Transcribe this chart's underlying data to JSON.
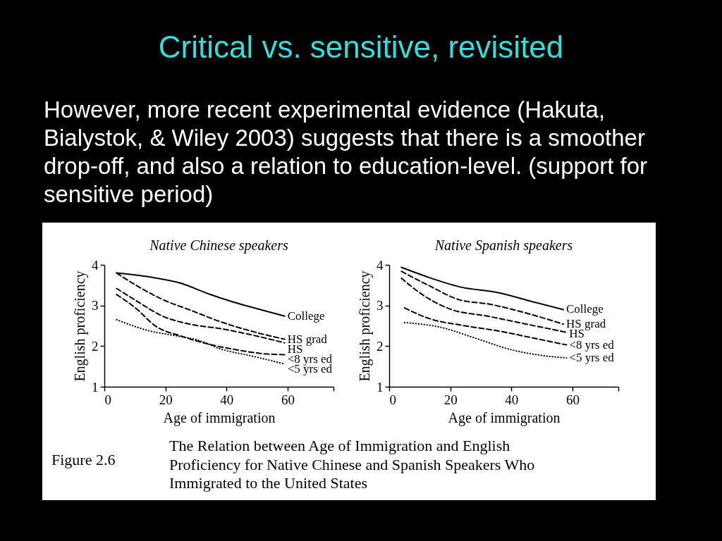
{
  "chart_data": [
    {
      "type": "other",
      "title": "Critical vs. sensitive, revisited",
      "subtitle": "However, more recent experimental evidence (Hakuta, Bialystok, & Wiley 2003) suggests that there is a smoother drop-off, and also a relation to education-level. (support for sensitive period)"
    },
    {
      "type": "line",
      "title": "Native Chinese speakers",
      "xlabel": "Age of immigration",
      "ylabel": "English proficiency",
      "xlim": [
        0,
        75
      ],
      "ylim": [
        1,
        4
      ],
      "xticks": [
        0,
        20,
        40,
        60,
        {
          "value": 75,
          "label": null
        }
      ],
      "yticks": [
        1,
        2,
        3,
        4
      ],
      "series": [
        {
          "name": "College",
          "color": "#000000",
          "line_style": "solid",
          "x": [
            4,
            15,
            25,
            34,
            42,
            50,
            59
          ],
          "values": [
            3.8,
            3.7,
            3.55,
            3.29,
            3.09,
            2.92,
            2.74
          ]
        },
        {
          "name": "HS grad",
          "color": "#000000",
          "line_style": "dashed",
          "x": [
            4,
            11,
            19,
            28,
            38,
            48,
            59
          ],
          "values": [
            3.8,
            3.47,
            3.15,
            2.89,
            2.6,
            2.37,
            2.17
          ]
        },
        {
          "name": "HS",
          "color": "#000000",
          "line_style": "dashed",
          "x": [
            4,
            11,
            19,
            28,
            38,
            48,
            59
          ],
          "values": [
            3.42,
            3.09,
            2.74,
            2.54,
            2.43,
            2.28,
            2.08
          ]
        },
        {
          "name": "<8 yrs ed",
          "color": "#000000",
          "line_style": "dashed",
          "x": [
            4,
            10,
            17,
            25,
            34,
            44,
            51,
            59
          ],
          "values": [
            3.27,
            2.95,
            2.48,
            2.25,
            2.05,
            1.9,
            1.82,
            1.79
          ]
        },
        {
          "name": "<5 yrs ed",
          "color": "#000000",
          "line_style": "dotted",
          "x": [
            4,
            15,
            23,
            31,
            38,
            48,
            59
          ],
          "values": [
            2.65,
            2.37,
            2.26,
            2.14,
            1.93,
            1.76,
            1.56
          ]
        }
      ]
    },
    {
      "type": "line",
      "title": "Native Spanish speakers",
      "xlabel": "Age of immigration",
      "ylabel": "English proficiency",
      "xlim": [
        0,
        75
      ],
      "ylim": [
        1,
        4
      ],
      "xticks": [
        0,
        20,
        40,
        60,
        {
          "value": 75,
          "label": null
        }
      ],
      "yticks": [
        1,
        2,
        3,
        4
      ],
      "series": [
        {
          "name": "College",
          "color": "#000000",
          "line_style": "solid",
          "x": [
            4,
            13,
            23,
            36,
            47,
            57
          ],
          "values": [
            3.94,
            3.69,
            3.46,
            3.31,
            3.09,
            2.9
          ]
        },
        {
          "name": "HS grad",
          "color": "#000000",
          "line_style": "dashed",
          "x": [
            4,
            13,
            23,
            33,
            44,
            57
          ],
          "values": [
            3.84,
            3.49,
            3.14,
            3.03,
            2.83,
            2.54
          ]
        },
        {
          "name": "HS",
          "color": "#000000",
          "line_style": "dashed",
          "x": [
            4,
            11,
            20,
            32,
            45,
            58
          ],
          "values": [
            3.67,
            3.26,
            2.91,
            2.74,
            2.54,
            2.34
          ]
        },
        {
          "name": "<8 yrs ed",
          "color": "#000000",
          "line_style": "dashed",
          "x": [
            5,
            13,
            24,
            36,
            47,
            58
          ],
          "values": [
            2.94,
            2.68,
            2.51,
            2.37,
            2.2,
            2.03
          ]
        },
        {
          "name": "<5 yrs ed",
          "color": "#000000",
          "line_style": "dotted",
          "x": [
            5,
            17,
            28,
            40,
            50,
            58
          ],
          "values": [
            2.58,
            2.46,
            2.2,
            1.91,
            1.77,
            1.71
          ]
        }
      ]
    },
    {
      "type": "other",
      "annotations": [
        "Figure 2.6",
        "The Relation between Age of Immigration and English Proficiency for Native Chinese and Spanish Speakers Who Immigrated to the United States"
      ]
    }
  ]
}
